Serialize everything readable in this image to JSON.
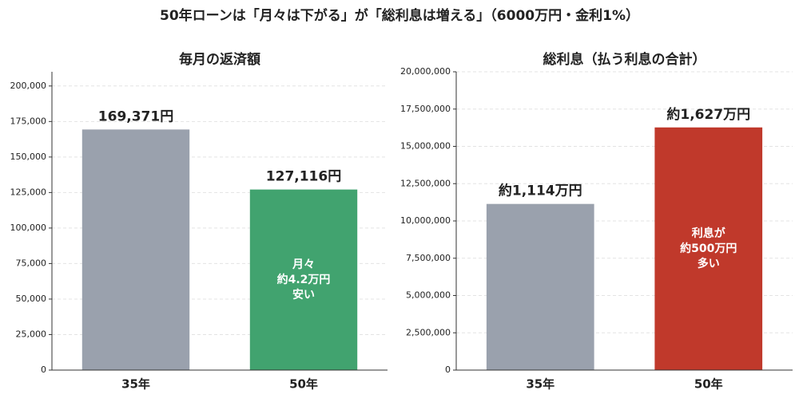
{
  "title": "50年ローンは「月々は下がる」が「総利息は増える」（6000万円・金利1%）",
  "chart_data": [
    {
      "type": "bar",
      "title": "毎月の返済額",
      "categories": [
        "35年",
        "50年"
      ],
      "values": [
        169371,
        127116
      ],
      "value_labels": [
        "169,371円",
        "127,116円"
      ],
      "colors": [
        "#9aa1ad",
        "#41a36f"
      ],
      "ylim": [
        0,
        210000
      ],
      "yticks": [
        0,
        {
          "value": 25000,
          "label": "25,000"
        },
        {
          "value": 50000,
          "label": "50,000"
        },
        {
          "value": 75000,
          "label": "75,000"
        },
        {
          "value": 100000,
          "label": "100,000"
        },
        {
          "value": 125000,
          "label": "125,000"
        },
        {
          "value": 150000,
          "label": "150,000"
        },
        {
          "value": 175000,
          "label": "175,000"
        },
        {
          "value": 200000,
          "label": "200,000"
        }
      ],
      "grid": true,
      "annotation": {
        "bar": 1,
        "lines": [
          "月々",
          "約4.2万円",
          "安い"
        ]
      }
    },
    {
      "type": "bar",
      "title": "総利息（払う利息の合計）",
      "categories": [
        "35年",
        "50年"
      ],
      "values": [
        11140000,
        16270000
      ],
      "value_labels": [
        "約1,114万円",
        "約1,627万円"
      ],
      "colors": [
        "#9aa1ad",
        "#c0392b"
      ],
      "ylim": [
        0,
        20000000
      ],
      "yticks": [
        0,
        {
          "value": 2500000,
          "label": "2,500,000"
        },
        {
          "value": 5000000,
          "label": "5,000,000"
        },
        {
          "value": 7500000,
          "label": "7,500,000"
        },
        {
          "value": 10000000,
          "label": "10,000,000"
        },
        {
          "value": 12500000,
          "label": "12,500,000"
        },
        {
          "value": 15000000,
          "label": "15,000,000"
        },
        {
          "value": 17500000,
          "label": "17,500,000"
        },
        {
          "value": 20000000,
          "label": "20,000,000"
        }
      ],
      "grid": true,
      "annotation": {
        "bar": 1,
        "lines": [
          "利息が",
          "約500万円",
          "多い"
        ]
      }
    }
  ]
}
